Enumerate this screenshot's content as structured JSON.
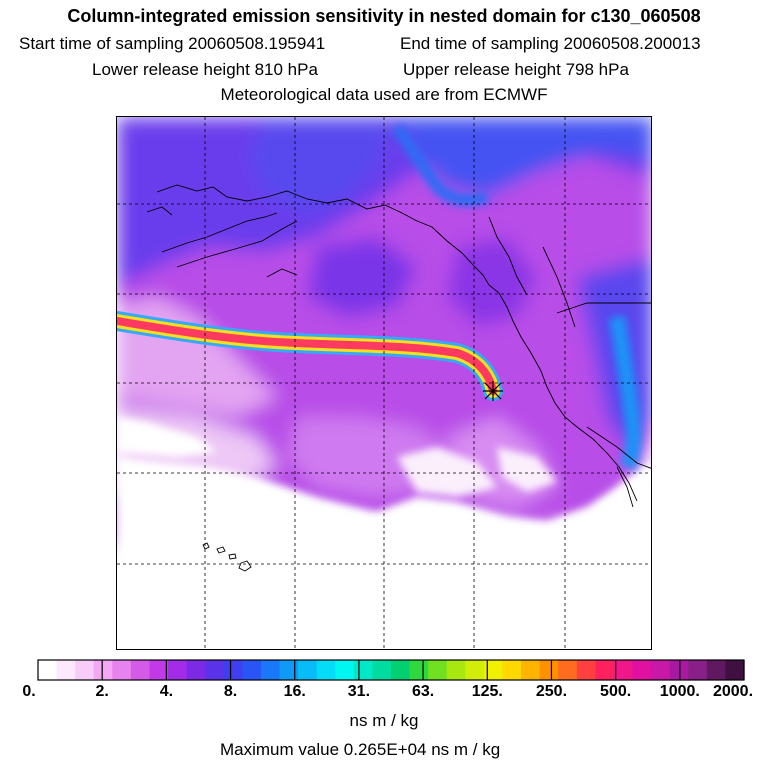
{
  "title": "Column-integrated emission sensitivity in nested domain for c130_060508",
  "sampling": {
    "start_label": "Start time of sampling",
    "start_value": "20060508.195941",
    "end_label": "End time of sampling",
    "end_value": "20060508.200013"
  },
  "release": {
    "lower_label": "Lower release height",
    "lower_value": "810 hPa",
    "upper_label": "Upper release height",
    "upper_value": "798 hPa"
  },
  "met_note": "Meteorological data used are from ECMWF",
  "colorbar": {
    "tick_labels": [
      "0.",
      "2.",
      "4.",
      "8.",
      "16.",
      "31.",
      "63.",
      "125.",
      "250.",
      "500.",
      "1000.",
      "2000."
    ],
    "units": "ns m / kg",
    "colors": [
      "#ffffff",
      "#fde8fd",
      "#f8ccf8",
      "#f2a8f2",
      "#e683ee",
      "#d45ae8",
      "#c23ae8",
      "#a22ce8",
      "#7d2ae4",
      "#5a33e8",
      "#3f3ef0",
      "#2a55f5",
      "#1a78f8",
      "#109af8",
      "#08bcf8",
      "#04dcf8",
      "#00f6f0",
      "#00e8c8",
      "#00dca0",
      "#00d070",
      "#30d840",
      "#70e020",
      "#a8e810",
      "#d0ee08",
      "#f0f000",
      "#ffd800",
      "#ffb400",
      "#ff9000",
      "#ff6c20",
      "#ff4040",
      "#ff2060",
      "#f01888",
      "#e010a0",
      "#c818a8",
      "#a818a0",
      "#882088",
      "#601860",
      "#401040"
    ]
  },
  "max_value": {
    "label": "Maximum value",
    "value": "0.265E+04 ns m / kg"
  }
}
